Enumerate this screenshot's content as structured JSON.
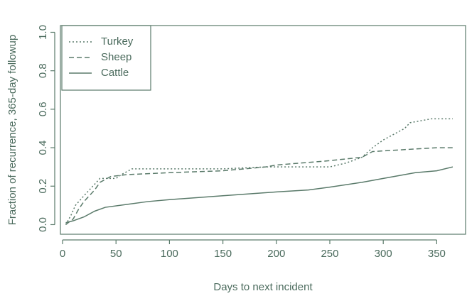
{
  "chart_data": {
    "type": "line",
    "x_label": "Days to next incident",
    "y_label": "Fraction of recurrence, 365-day followup",
    "xlim": [
      -2,
      377
    ],
    "ylim": [
      -0.05,
      1.035
    ],
    "xticks": [
      0,
      50,
      100,
      150,
      200,
      250,
      300,
      350
    ],
    "yticks": [
      {
        "value": 0,
        "label": "0.0"
      },
      {
        "value": 0.2,
        "label": "0.2"
      },
      {
        "value": 0.4,
        "label": "0.4"
      },
      {
        "value": 0.6,
        "label": "0.6"
      },
      {
        "value": 0.8,
        "label": "0.8"
      },
      {
        "value": 1,
        "label": "1.0"
      }
    ],
    "legend": "top-left",
    "series": [
      {
        "name": "Turkey",
        "color": "#5a7a6a",
        "dash": "dotted",
        "x": [
          3,
          8,
          12,
          20,
          25,
          35,
          50,
          55,
          65,
          100,
          150,
          190,
          250,
          265,
          280,
          290,
          300,
          310,
          320,
          325,
          345,
          365
        ],
        "values": [
          0,
          0.05,
          0.1,
          0.15,
          0.18,
          0.24,
          0.24,
          0.26,
          0.29,
          0.29,
          0.29,
          0.3,
          0.3,
          0.32,
          0.35,
          0.4,
          0.44,
          0.47,
          0.5,
          0.53,
          0.55,
          0.55
        ]
      },
      {
        "name": "Sheep",
        "color": "#5a7a6a",
        "dash": "dashed",
        "x": [
          3,
          10,
          15,
          20,
          30,
          35,
          45,
          60,
          100,
          150,
          190,
          200,
          245,
          280,
          290,
          320,
          350,
          365
        ],
        "values": [
          0,
          0.03,
          0.08,
          0.12,
          0.18,
          0.22,
          0.25,
          0.26,
          0.27,
          0.28,
          0.3,
          0.31,
          0.33,
          0.35,
          0.38,
          0.39,
          0.4,
          0.4
        ]
      },
      {
        "name": "Cattle",
        "color": "#5a7a6a",
        "dash": "solid",
        "x": [
          3,
          10,
          20,
          30,
          40,
          60,
          80,
          100,
          150,
          200,
          230,
          250,
          280,
          300,
          330,
          350,
          365
        ],
        "values": [
          0.01,
          0.02,
          0.04,
          0.07,
          0.09,
          0.105,
          0.12,
          0.13,
          0.15,
          0.17,
          0.18,
          0.195,
          0.22,
          0.24,
          0.27,
          0.28,
          0.3
        ]
      }
    ]
  }
}
